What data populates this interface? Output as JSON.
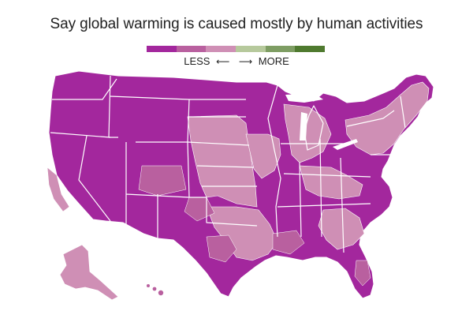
{
  "title": "Say global warming is caused mostly by human activities",
  "legend": {
    "left_label": "LESS",
    "left_arrow": "⟵",
    "right_arrow": "⟶",
    "right_label": "MORE",
    "colors": [
      "#a3279d",
      "#b9609f",
      "#cf8fb5",
      "#b6c99c",
      "#7e9d63",
      "#4f7a2f"
    ]
  },
  "map": {
    "region": "United States (counties)",
    "state_fill_default": "#a3279d",
    "state_border": "#ffffff"
  }
}
